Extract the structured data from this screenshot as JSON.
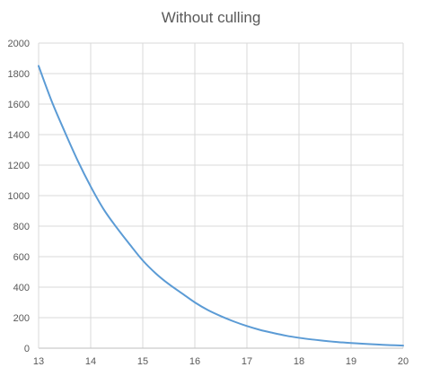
{
  "chart_data": {
    "type": "line",
    "title": "Without culling",
    "xlabel": "",
    "ylabel": "",
    "xlim": [
      13,
      20
    ],
    "ylim": [
      0,
      2000
    ],
    "x_ticks": [
      13,
      14,
      15,
      16,
      17,
      18,
      19,
      20
    ],
    "y_ticks": [
      0,
      200,
      400,
      600,
      800,
      1000,
      1200,
      1400,
      1600,
      1800,
      2000
    ],
    "grid": true,
    "legend": "none",
    "series": [
      {
        "color": "#5b9bd5",
        "x": [
          13,
          13.25,
          13.5,
          13.75,
          14,
          14.25,
          14.5,
          14.75,
          15,
          15.25,
          15.5,
          15.75,
          16,
          16.25,
          16.5,
          16.75,
          17,
          17.25,
          17.5,
          17.75,
          18,
          18.25,
          18.5,
          18.75,
          19,
          19.25,
          19.5,
          19.75,
          20
        ],
        "y": [
          1850,
          1620,
          1420,
          1230,
          1060,
          910,
          790,
          680,
          575,
          490,
          420,
          360,
          300,
          250,
          210,
          175,
          145,
          120,
          100,
          82,
          68,
          57,
          48,
          40,
          34,
          29,
          24,
          20,
          17
        ]
      }
    ]
  }
}
